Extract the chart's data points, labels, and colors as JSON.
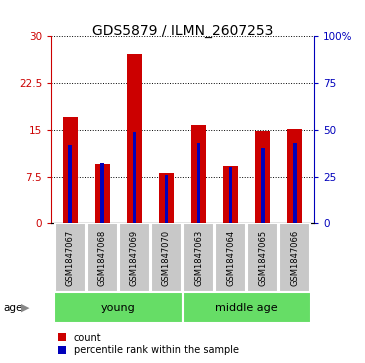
{
  "title": "GDS5879 / ILMN_2607253",
  "samples": [
    "GSM1847067",
    "GSM1847068",
    "GSM1847069",
    "GSM1847070",
    "GSM1847063",
    "GSM1847064",
    "GSM1847065",
    "GSM1847066"
  ],
  "count_values": [
    17.0,
    9.5,
    27.2,
    8.0,
    15.8,
    9.2,
    14.8,
    15.2
  ],
  "percentile_values": [
    42,
    32,
    49,
    26,
    43,
    30,
    40,
    43
  ],
  "groups": [
    {
      "label": "young",
      "start": 0,
      "end": 4
    },
    {
      "label": "middle age",
      "start": 4,
      "end": 8
    }
  ],
  "group_divider": 4,
  "ylim_left": [
    0,
    30
  ],
  "ylim_right": [
    0,
    100
  ],
  "yticks_left": [
    0,
    7.5,
    15,
    22.5,
    30
  ],
  "ytick_labels_left": [
    "0",
    "7.5",
    "15",
    "22.5",
    "30"
  ],
  "yticks_right": [
    0,
    25,
    50,
    75,
    100
  ],
  "ytick_labels_right": [
    "0",
    "25",
    "50",
    "75",
    "100%"
  ],
  "bar_color_red": "#CC0000",
  "bar_color_blue": "#0000BB",
  "red_bar_width": 0.45,
  "blue_bar_width": 0.12,
  "legend_red_label": "count",
  "legend_blue_label": "percentile rank within the sample",
  "age_label": "age",
  "xlabel_bg_color": "#C8C8C8",
  "group_bg_color": "#66DD66"
}
